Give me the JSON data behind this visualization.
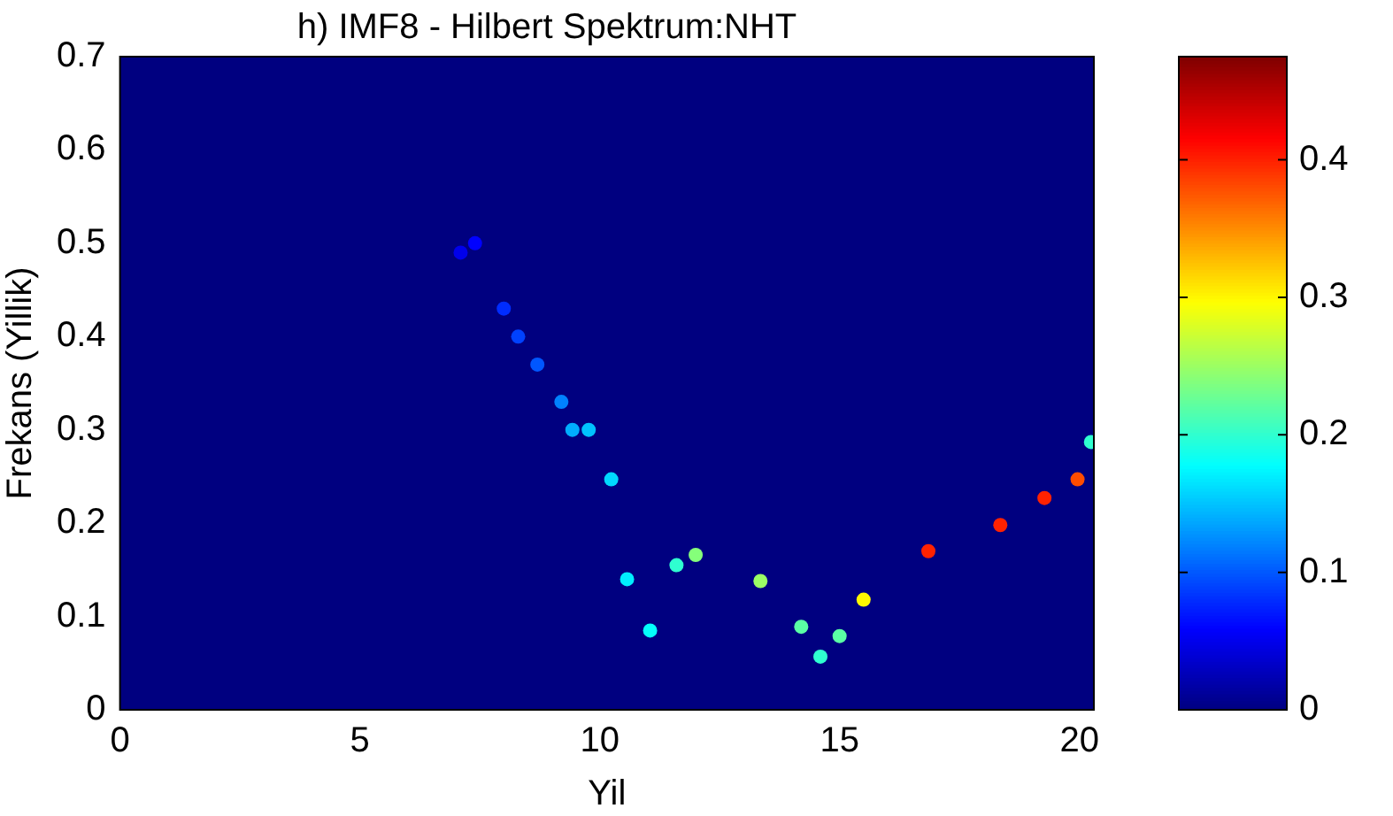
{
  "chart_data": {
    "type": "scatter",
    "title": "h) IMF8 - Hilbert Spektrum:NHT",
    "xlabel": "Yil",
    "ylabel": "Frekans (Yillik)",
    "clim": [
      0,
      0.475
    ],
    "cticks": [
      0,
      0.1,
      0.2,
      0.3,
      0.4
    ],
    "xlim": [
      0,
      20.3
    ],
    "xticks": [
      0,
      5,
      10,
      15,
      20
    ],
    "ylim": [
      0,
      0.7
    ],
    "yticks": [
      0,
      0.1,
      0.2,
      0.3,
      0.4,
      0.5,
      0.6,
      0.7
    ],
    "legend": false,
    "marker": "circle",
    "x": [
      7.1,
      7.4,
      8.0,
      8.3,
      8.7,
      9.2,
      9.43,
      9.77,
      10.24,
      10.57,
      11.05,
      11.6,
      12.0,
      13.35,
      14.2,
      14.6,
      15.0,
      15.5,
      16.85,
      18.35,
      19.27,
      19.96,
      20.24
    ],
    "values": [
      0.49,
      0.5,
      0.43,
      0.4,
      0.37,
      0.33,
      0.3,
      0.3,
      0.247,
      0.14,
      0.085,
      0.155,
      0.166,
      0.138,
      0.089,
      0.057,
      0.079,
      0.118,
      0.17,
      0.198,
      0.227,
      0.247,
      0.287
    ],
    "cvalues": [
      0.05,
      0.06,
      0.08,
      0.09,
      0.1,
      0.12,
      0.14,
      0.15,
      0.16,
      0.17,
      0.18,
      0.2,
      0.24,
      0.25,
      0.22,
      0.2,
      0.22,
      0.3,
      0.4,
      0.4,
      0.4,
      0.38,
      0.2
    ]
  }
}
